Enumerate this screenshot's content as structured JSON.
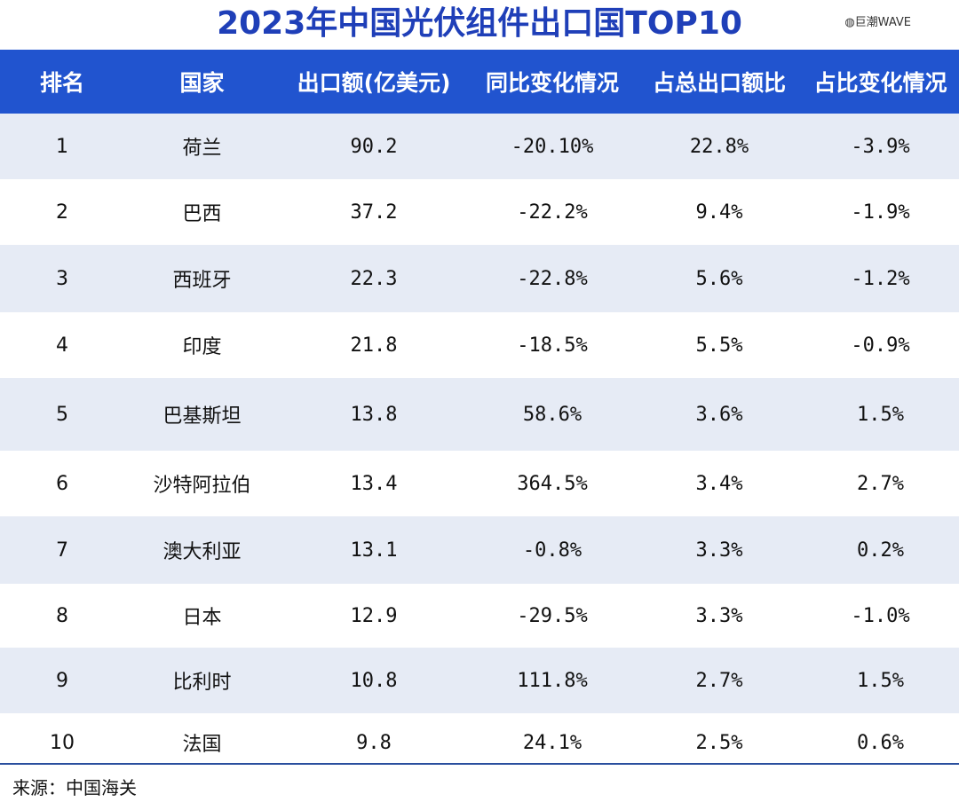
{
  "title": "2023年中国光伏组件出口国TOP10",
  "watermark": "◍巨潮WAVE",
  "headers": [
    "排名",
    "国家",
    "出口额(亿美元)",
    "同比变化情况",
    "占总出口额比",
    "占比变化情况"
  ],
  "rows": [
    {
      "rank": "1",
      "country": "荷兰",
      "export": "90.2",
      "yoy": "-20.10%",
      "share": "22.8%",
      "share_change": "-3.9%"
    },
    {
      "rank": "2",
      "country": "巴西",
      "export": "37.2",
      "yoy": "-22.2%",
      "share": "9.4%",
      "share_change": "-1.9%"
    },
    {
      "rank": "3",
      "country": "西班牙",
      "export": "22.3",
      "yoy": "-22.8%",
      "share": "5.6%",
      "share_change": "-1.2%"
    },
    {
      "rank": "4",
      "country": "印度",
      "export": "21.8",
      "yoy": "-18.5%",
      "share": "5.5%",
      "share_change": "-0.9%"
    },
    {
      "rank": "5",
      "country": "巴基斯坦",
      "export": "13.8",
      "yoy": "58.6%",
      "share": "3.6%",
      "share_change": "1.5%"
    },
    {
      "rank": "6",
      "country": "沙特阿拉伯",
      "export": "13.4",
      "yoy": "364.5%",
      "share": "3.4%",
      "share_change": "2.7%"
    },
    {
      "rank": "7",
      "country": "澳大利亚",
      "export": "13.1",
      "yoy": "-0.8%",
      "share": "3.3%",
      "share_change": "0.2%"
    },
    {
      "rank": "8",
      "country": "日本",
      "export": "12.9",
      "yoy": "-29.5%",
      "share": "3.3%",
      "share_change": "-1.0%"
    },
    {
      "rank": "9",
      "country": "比利时",
      "export": "10.8",
      "yoy": "111.8%",
      "share": "2.7%",
      "share_change": "1.5%"
    },
    {
      "rank": "10",
      "country": "法国",
      "export": "9.8",
      "yoy": "24.1%",
      "share": "2.5%",
      "share_change": "0.6%"
    }
  ],
  "source": "来源：中国海关",
  "colors": {
    "title": "#1f3fb8",
    "header_bg": "#2154cf",
    "row_shade": "#e6ebf5"
  }
}
